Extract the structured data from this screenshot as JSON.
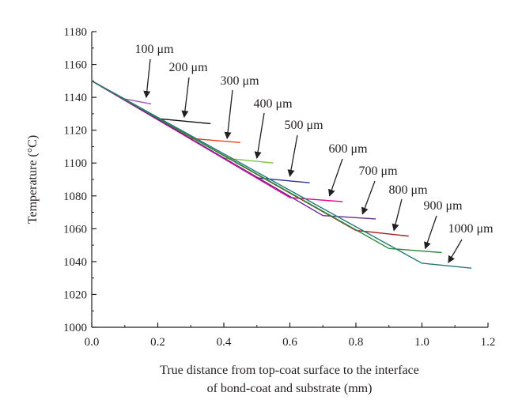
{
  "chart_data": {
    "type": "line",
    "title": "",
    "xlabel_lines": [
      "True distance from top-coat surface to the interface",
      "of bond-coat and substrate (mm)"
    ],
    "ylabel": "Temperature (°C)",
    "xlim": [
      0.0,
      1.2
    ],
    "ylim": [
      1000,
      1180
    ],
    "xticks": [
      0.0,
      0.2,
      0.4,
      0.6,
      0.8,
      1.0,
      1.2
    ],
    "xtick_labels": [
      "0.0",
      "0.2",
      "0.4",
      "0.6",
      "0.8",
      "1.0",
      "1.2"
    ],
    "yticks": [
      1000,
      1020,
      1040,
      1060,
      1080,
      1100,
      1120,
      1140,
      1160,
      1180
    ],
    "ytick_labels": [
      "1000",
      "1020",
      "1040",
      "1060",
      "1080",
      "1100",
      "1120",
      "1140",
      "1160",
      "1180"
    ],
    "grid": false,
    "legend": "none",
    "series": [
      {
        "label": "100 μm",
        "color": "#9b59b6",
        "x": [
          0.0,
          0.1,
          0.18
        ],
        "y": [
          1150,
          1139,
          1136
        ],
        "arrow_to": [
          0.165,
          1138
        ]
      },
      {
        "label": "200 μm",
        "color": "#111111",
        "x": [
          0.0,
          0.2,
          0.36
        ],
        "y": [
          1150,
          1127,
          1124
        ],
        "arrow_to": [
          0.28,
          1126
        ]
      },
      {
        "label": "300 μm",
        "color": "#e8401c",
        "x": [
          0.0,
          0.3,
          0.45
        ],
        "y": [
          1150,
          1115,
          1112.5
        ],
        "arrow_to": [
          0.41,
          1113
        ]
      },
      {
        "label": "400 μm",
        "color": "#7dc242",
        "x": [
          0.0,
          0.4,
          0.55
        ],
        "y": [
          1150,
          1103,
          1100
        ],
        "arrow_to": [
          0.5,
          1101
        ]
      },
      {
        "label": "500 μm",
        "color": "#2e3192",
        "x": [
          0.0,
          0.5,
          0.66
        ],
        "y": [
          1150,
          1091,
          1088
        ],
        "arrow_to": [
          0.6,
          1090
        ]
      },
      {
        "label": "600 μm",
        "color": "#ec008c",
        "x": [
          0.0,
          0.6,
          0.76
        ],
        "y": [
          1150,
          1079,
          1076.5
        ],
        "arrow_to": [
          0.72,
          1078
        ]
      },
      {
        "label": "700 μm",
        "color": "#662d91",
        "x": [
          0.0,
          0.7,
          0.86
        ],
        "y": [
          1150,
          1068,
          1066
        ],
        "arrow_to": [
          0.82,
          1067
        ]
      },
      {
        "label": "800 μm",
        "color": "#9e1f1f",
        "x": [
          0.0,
          0.8,
          0.96
        ],
        "y": [
          1150,
          1059,
          1055.5
        ],
        "arrow_to": [
          0.915,
          1057
        ]
      },
      {
        "label": "900 μm",
        "color": "#2c8a3b",
        "x": [
          0.0,
          0.9,
          1.06
        ],
        "y": [
          1150,
          1048,
          1045.5
        ],
        "arrow_to": [
          1.01,
          1046
        ]
      },
      {
        "label": "1000 μm",
        "color": "#227b7b",
        "x": [
          0.0,
          1.0,
          1.15
        ],
        "y": [
          1150,
          1039,
          1036
        ],
        "arrow_to": [
          1.08,
          1037.5
        ]
      }
    ]
  }
}
